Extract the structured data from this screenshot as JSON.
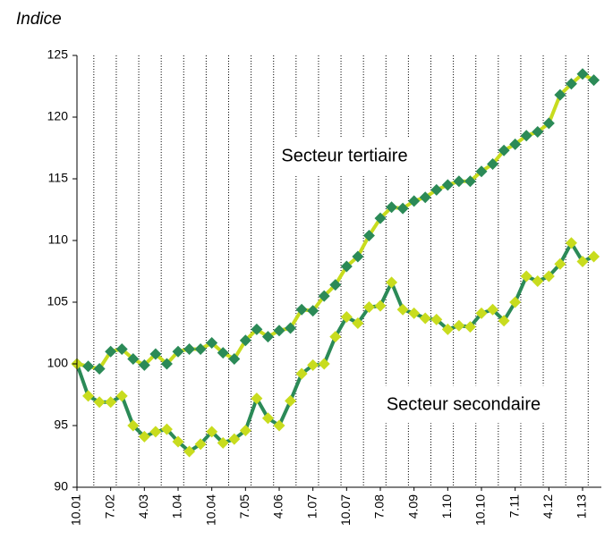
{
  "chart_data": {
    "type": "line",
    "y_label": "Indice",
    "categories": [
      "10.01",
      null,
      null,
      "7.02",
      null,
      null,
      "4.03",
      null,
      null,
      "1.04",
      null,
      null,
      "10.04",
      null,
      null,
      "7.05",
      null,
      null,
      "4.06",
      null,
      null,
      "1.07",
      null,
      null,
      "10.07",
      null,
      null,
      "7.08",
      null,
      null,
      "4.09",
      null,
      null,
      "1.10",
      null,
      null,
      "10.10",
      null,
      null,
      "7.11",
      null,
      null,
      "4.12",
      null,
      null,
      "1.13",
      null
    ],
    "series": [
      {
        "name": "Secteur tertiaire",
        "color": "#c8dc1e",
        "marker_color": "#2b8a57",
        "values": [
          100,
          99.8,
          99.6,
          101,
          101.2,
          100.4,
          99.9,
          100.8,
          100,
          101,
          101.2,
          101.2,
          101.7,
          100.9,
          100.4,
          101.9,
          102.8,
          102.2,
          102.7,
          102.9,
          104.4,
          104.3,
          105.5,
          106.4,
          107.9,
          108.7,
          110.4,
          111.8,
          112.7,
          112.6,
          113.2,
          113.5,
          114.1,
          114.5,
          114.8,
          114.8,
          115.6,
          116.2,
          117.3,
          117.8,
          118.5,
          118.8,
          119.5,
          121.8,
          122.7,
          123.5,
          123
        ]
      },
      {
        "name": "Secteur secondaire",
        "color": "#2b8a57",
        "marker_color": "#c8dc1e",
        "values": [
          100,
          97.4,
          96.9,
          96.9,
          97.4,
          95,
          94.1,
          94.5,
          94.7,
          93.7,
          92.9,
          93.5,
          94.5,
          93.6,
          93.9,
          94.6,
          97.2,
          95.6,
          95,
          97,
          99.2,
          99.9,
          100,
          102.2,
          103.8,
          103.3,
          104.6,
          104.7,
          106.6,
          104.4,
          104.1,
          103.7,
          103.6,
          102.8,
          103.1,
          103,
          104.1,
          104.4,
          103.5,
          105,
          107.1,
          106.7,
          107.1,
          108.1,
          109.8,
          108.3,
          108.7
        ]
      }
    ],
    "ylim": [
      90,
      125
    ],
    "yticks": [
      90,
      95,
      100,
      105,
      110,
      115,
      120,
      125
    ],
    "grid": false
  }
}
